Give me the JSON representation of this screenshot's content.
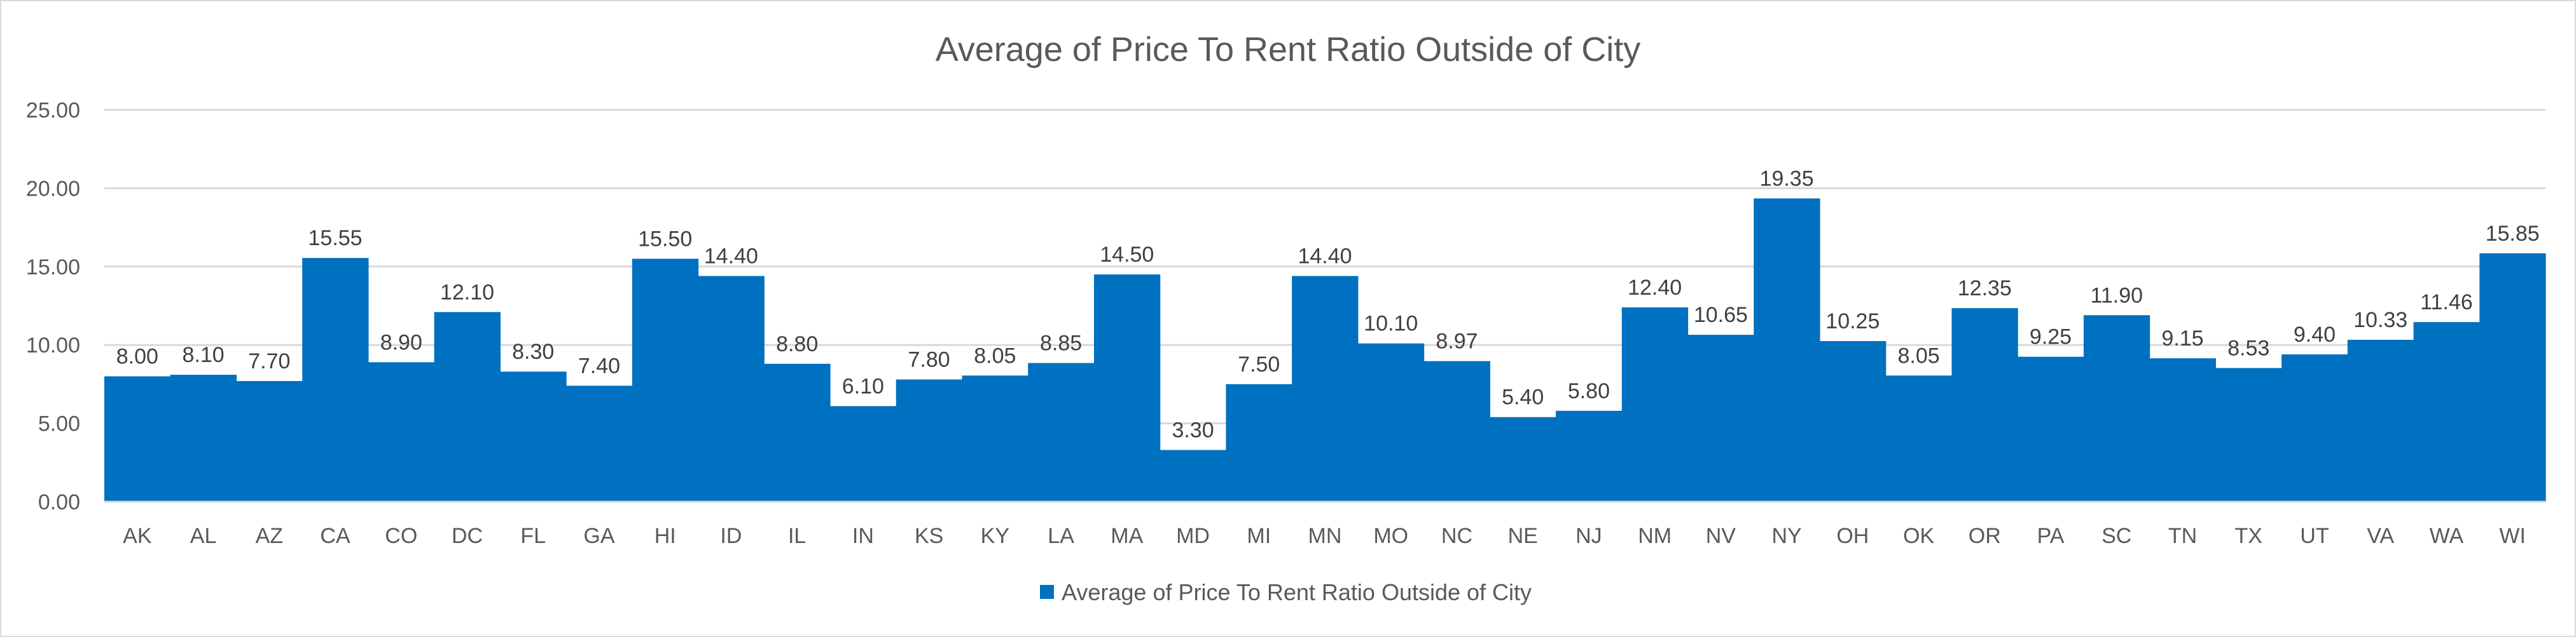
{
  "chart_data": {
    "type": "bar",
    "title": "Average of Price To Rent Ratio Outside of City",
    "xlabel": "",
    "ylabel": "",
    "ylim": [
      0,
      25
    ],
    "yticks": [
      "0.00",
      "5.00",
      "10.00",
      "15.00",
      "20.00",
      "25.00"
    ],
    "grid": true,
    "legend_position": "bottom",
    "bar_color": "#0070C0",
    "categories": [
      "AK",
      "AL",
      "AZ",
      "CA",
      "CO",
      "DC",
      "FL",
      "GA",
      "HI",
      "ID",
      "IL",
      "IN",
      "KS",
      "KY",
      "LA",
      "MA",
      "MD",
      "MI",
      "MN",
      "MO",
      "NC",
      "NE",
      "NJ",
      "NM",
      "NV",
      "NY",
      "OH",
      "OK",
      "OR",
      "PA",
      "SC",
      "TN",
      "TX",
      "UT",
      "VA",
      "WA",
      "WI"
    ],
    "series": [
      {
        "name": "Average of Price To Rent Ratio Outside of City",
        "values": [
          8.0,
          8.1,
          7.7,
          15.55,
          8.9,
          12.1,
          8.3,
          7.4,
          15.5,
          14.4,
          8.8,
          6.1,
          7.8,
          8.05,
          8.85,
          14.5,
          3.3,
          7.5,
          14.4,
          10.1,
          8.97,
          5.4,
          5.8,
          12.4,
          10.65,
          19.35,
          10.25,
          8.05,
          12.35,
          9.25,
          11.9,
          9.15,
          8.53,
          9.4,
          10.33,
          11.46,
          15.85
        ],
        "labels": [
          "8.00",
          "8.10",
          "7.70",
          "15.55",
          "8.90",
          "12.10",
          "8.30",
          "7.40",
          "15.50",
          "14.40",
          "8.80",
          "6.10",
          "7.80",
          "8.05",
          "8.85",
          "14.50",
          "3.30",
          "7.50",
          "14.40",
          "10.10",
          "8.97",
          "5.40",
          "5.80",
          "12.40",
          "10.65",
          "19.35",
          "10.25",
          "8.05",
          "12.35",
          "9.25",
          "11.90",
          "9.15",
          "8.53",
          "9.40",
          "10.33",
          "11.46",
          "15.85"
        ]
      }
    ]
  }
}
